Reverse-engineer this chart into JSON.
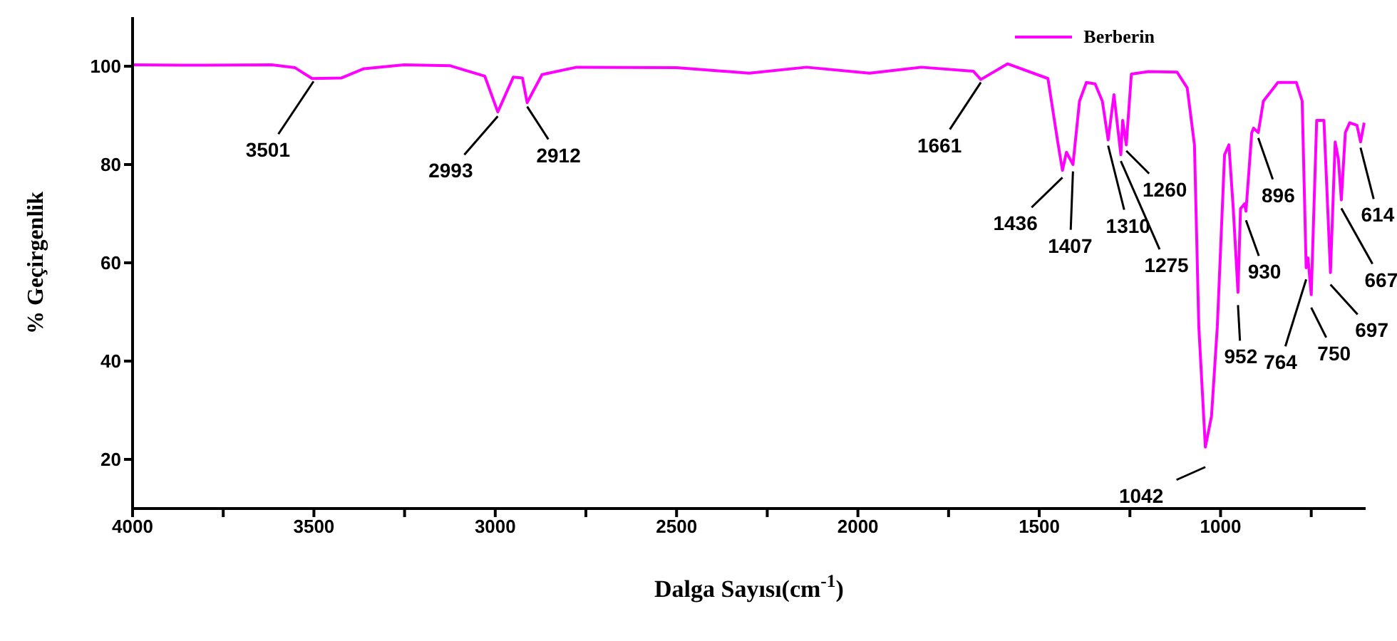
{
  "chart_data": {
    "type": "line",
    "xlabel": "Dalga Sayısı(cm$^{-1}$)",
    "ylabel": "% Geçirgenlik",
    "xlim": [
      4000,
      600
    ],
    "xticks": [
      4000,
      {
        "value": 3750,
        "label": null
      },
      3500,
      {
        "value": 3250,
        "label": null
      },
      3000,
      {
        "value": 2750,
        "label": null
      },
      2500,
      {
        "value": 2250,
        "label": null
      },
      2000,
      {
        "value": 1750,
        "label": null
      },
      1500,
      {
        "value": 1250,
        "label": null
      },
      1000,
      {
        "value": 750,
        "label": null
      }
    ],
    "ylim": [
      10,
      110
    ],
    "yticks": [
      20,
      40,
      60,
      80,
      100
    ],
    "legend": "top right",
    "grid": false,
    "x": [
      4000,
      3800,
      3616,
      3552,
      3505,
      3425,
      3362,
      3251,
      3124,
      3029,
      2993,
      2950,
      2925,
      2912,
      2871,
      2776,
      2500,
      2300,
      2142,
      1968,
      1825,
      1682,
      1661,
      1587,
      1476,
      1449,
      1436,
      1425,
      1407,
      1389,
      1370,
      1346,
      1326,
      1310,
      1294,
      1275,
      1270,
      1260,
      1246,
      1199,
      1120,
      1092,
      1072,
      1060,
      1042,
      1025,
      1009,
      989,
      977,
      965,
      952,
      945,
      934,
      930,
      914,
      909,
      896,
      882,
      842,
      791,
      775,
      764,
      759,
      750,
      735,
      715,
      697,
      684,
      675,
      667,
      656,
      644,
      624,
      614,
      604
    ],
    "series": [
      {
        "name": "Berberin",
        "color": "#ff00ff",
        "values": [
          100.3,
          100.2,
          100.3,
          99.7,
          97.5,
          97.6,
          99.5,
          100.3,
          100.1,
          98,
          90.7,
          97.8,
          97.6,
          92.6,
          98.3,
          99.8,
          99.7,
          98.6,
          99.8,
          98.6,
          99.8,
          99,
          97.3,
          100.5,
          97.5,
          84.6,
          78.8,
          82.5,
          80,
          92.9,
          96.7,
          96.4,
          92.9,
          85,
          94.2,
          82,
          89,
          84,
          98.4,
          98.9,
          98.8,
          95.6,
          84,
          47,
          22.5,
          28.8,
          47,
          82,
          84,
          71,
          54,
          71,
          72,
          70.5,
          86.5,
          87.4,
          86.5,
          92.9,
          96.7,
          96.7,
          92.9,
          59,
          61,
          53.5,
          89,
          89,
          58,
          84.6,
          81,
          72.8,
          86.5,
          88.5,
          88,
          84.6,
          88.5
        ]
      }
    ],
    "annotations": [
      {
        "text": "3501",
        "x": 3501,
        "y": 97.5
      },
      {
        "text": "2993",
        "x": 2993,
        "y": 90.7
      },
      {
        "text": "2912",
        "x": 2912,
        "y": 92.6
      },
      {
        "text": "1661",
        "x": 1661,
        "y": 97.3
      },
      {
        "text": "1436",
        "x": 1436,
        "y": 78.8
      },
      {
        "text": "1407",
        "x": 1407,
        "y": 80
      },
      {
        "text": "1310",
        "x": 1310,
        "y": 85
      },
      {
        "text": "1275",
        "x": 1275,
        "y": 82
      },
      {
        "text": "1260",
        "x": 1260,
        "y": 84
      },
      {
        "text": "1042",
        "x": 1042,
        "y": 22.5
      },
      {
        "text": "952",
        "x": 952,
        "y": 54
      },
      {
        "text": "930",
        "x": 930,
        "y": 70.5
      },
      {
        "text": "896",
        "x": 896,
        "y": 86.5
      },
      {
        "text": "764",
        "x": 764,
        "y": 59
      },
      {
        "text": "750",
        "x": 750,
        "y": 53.5
      },
      {
        "text": "697",
        "x": 697,
        "y": 58
      },
      {
        "text": "667",
        "x": 667,
        "y": 72.8
      },
      {
        "text": "614",
        "x": 614,
        "y": 84.6
      }
    ]
  }
}
